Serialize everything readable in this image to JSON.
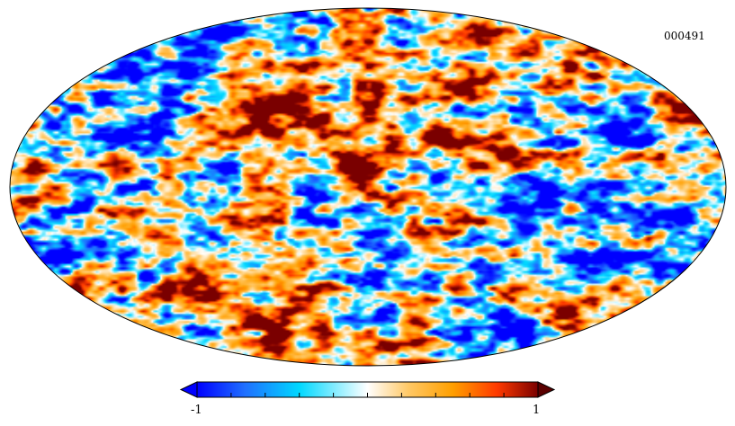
{
  "map": {
    "id_label": "000491",
    "projection": "mollweide",
    "colormap": [
      "#0000ff",
      "#1f6fff",
      "#00d8ff",
      "#ffffff",
      "#ffc866",
      "#ff9f00",
      "#ff3a00",
      "#7a0000"
    ]
  },
  "colorbar": {
    "min_label": "-1",
    "max_label": "1",
    "min": -1,
    "max": 1,
    "tick_count": 11
  }
}
